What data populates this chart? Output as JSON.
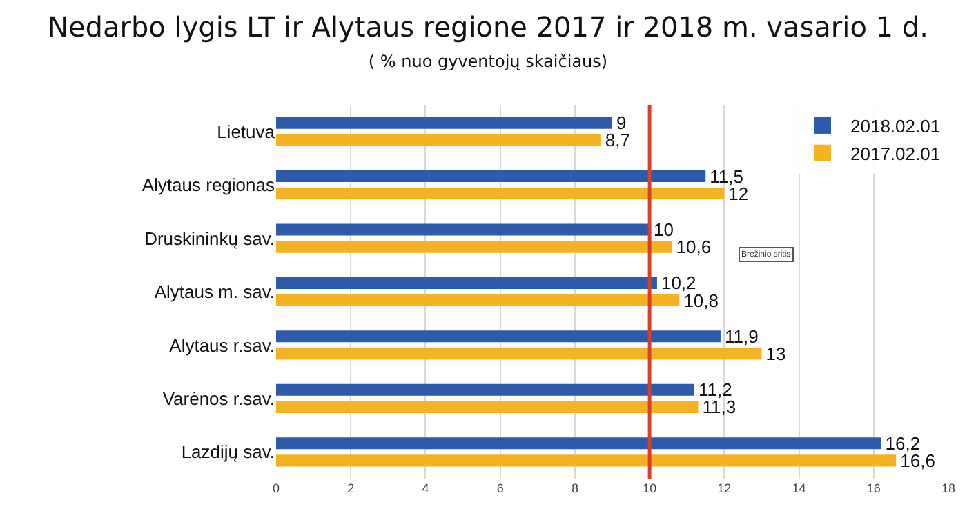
{
  "chart_data": {
    "type": "bar",
    "orientation": "horizontal",
    "title": "Nedarbo lygis LT ir Alytaus regione 2017 ir 2018 m. vasario 1 d.",
    "subtitle": "( % nuo gyventojų skaičiaus)",
    "categories": [
      "Lietuva",
      "Alytaus regionas",
      "Druskininkų sav.",
      "Alytaus m. sav.",
      "Alytaus r.sav.",
      "Varėnos r.sav.",
      "Lazdijų sav."
    ],
    "series": [
      {
        "name": "2018.02.01",
        "color": "#2e5aac",
        "values": [
          9,
          11.5,
          10,
          10.2,
          11.9,
          11.2,
          16.2
        ],
        "value_labels": [
          "9",
          "11,5",
          "10",
          "10,2",
          "11,9",
          "11,2",
          "16,2"
        ]
      },
      {
        "name": "2017.02.01",
        "color": "#f5b324",
        "values": [
          8.7,
          12,
          10.6,
          10.8,
          13,
          11.3,
          16.6
        ],
        "value_labels": [
          "8,7",
          "12",
          "10,6",
          "10,8",
          "13",
          "11,3",
          "16,6"
        ]
      }
    ],
    "xlim": [
      0,
      18
    ],
    "xticks": [
      0,
      2,
      4,
      6,
      8,
      10,
      12,
      14,
      16,
      18
    ],
    "grid": "x",
    "legend": "top right",
    "ref_lines": [
      {
        "axis": "x",
        "value": 10,
        "color": "#d9402b",
        "line_style": "solid"
      }
    ],
    "annotations": [
      "Brėžinio sritis"
    ]
  }
}
